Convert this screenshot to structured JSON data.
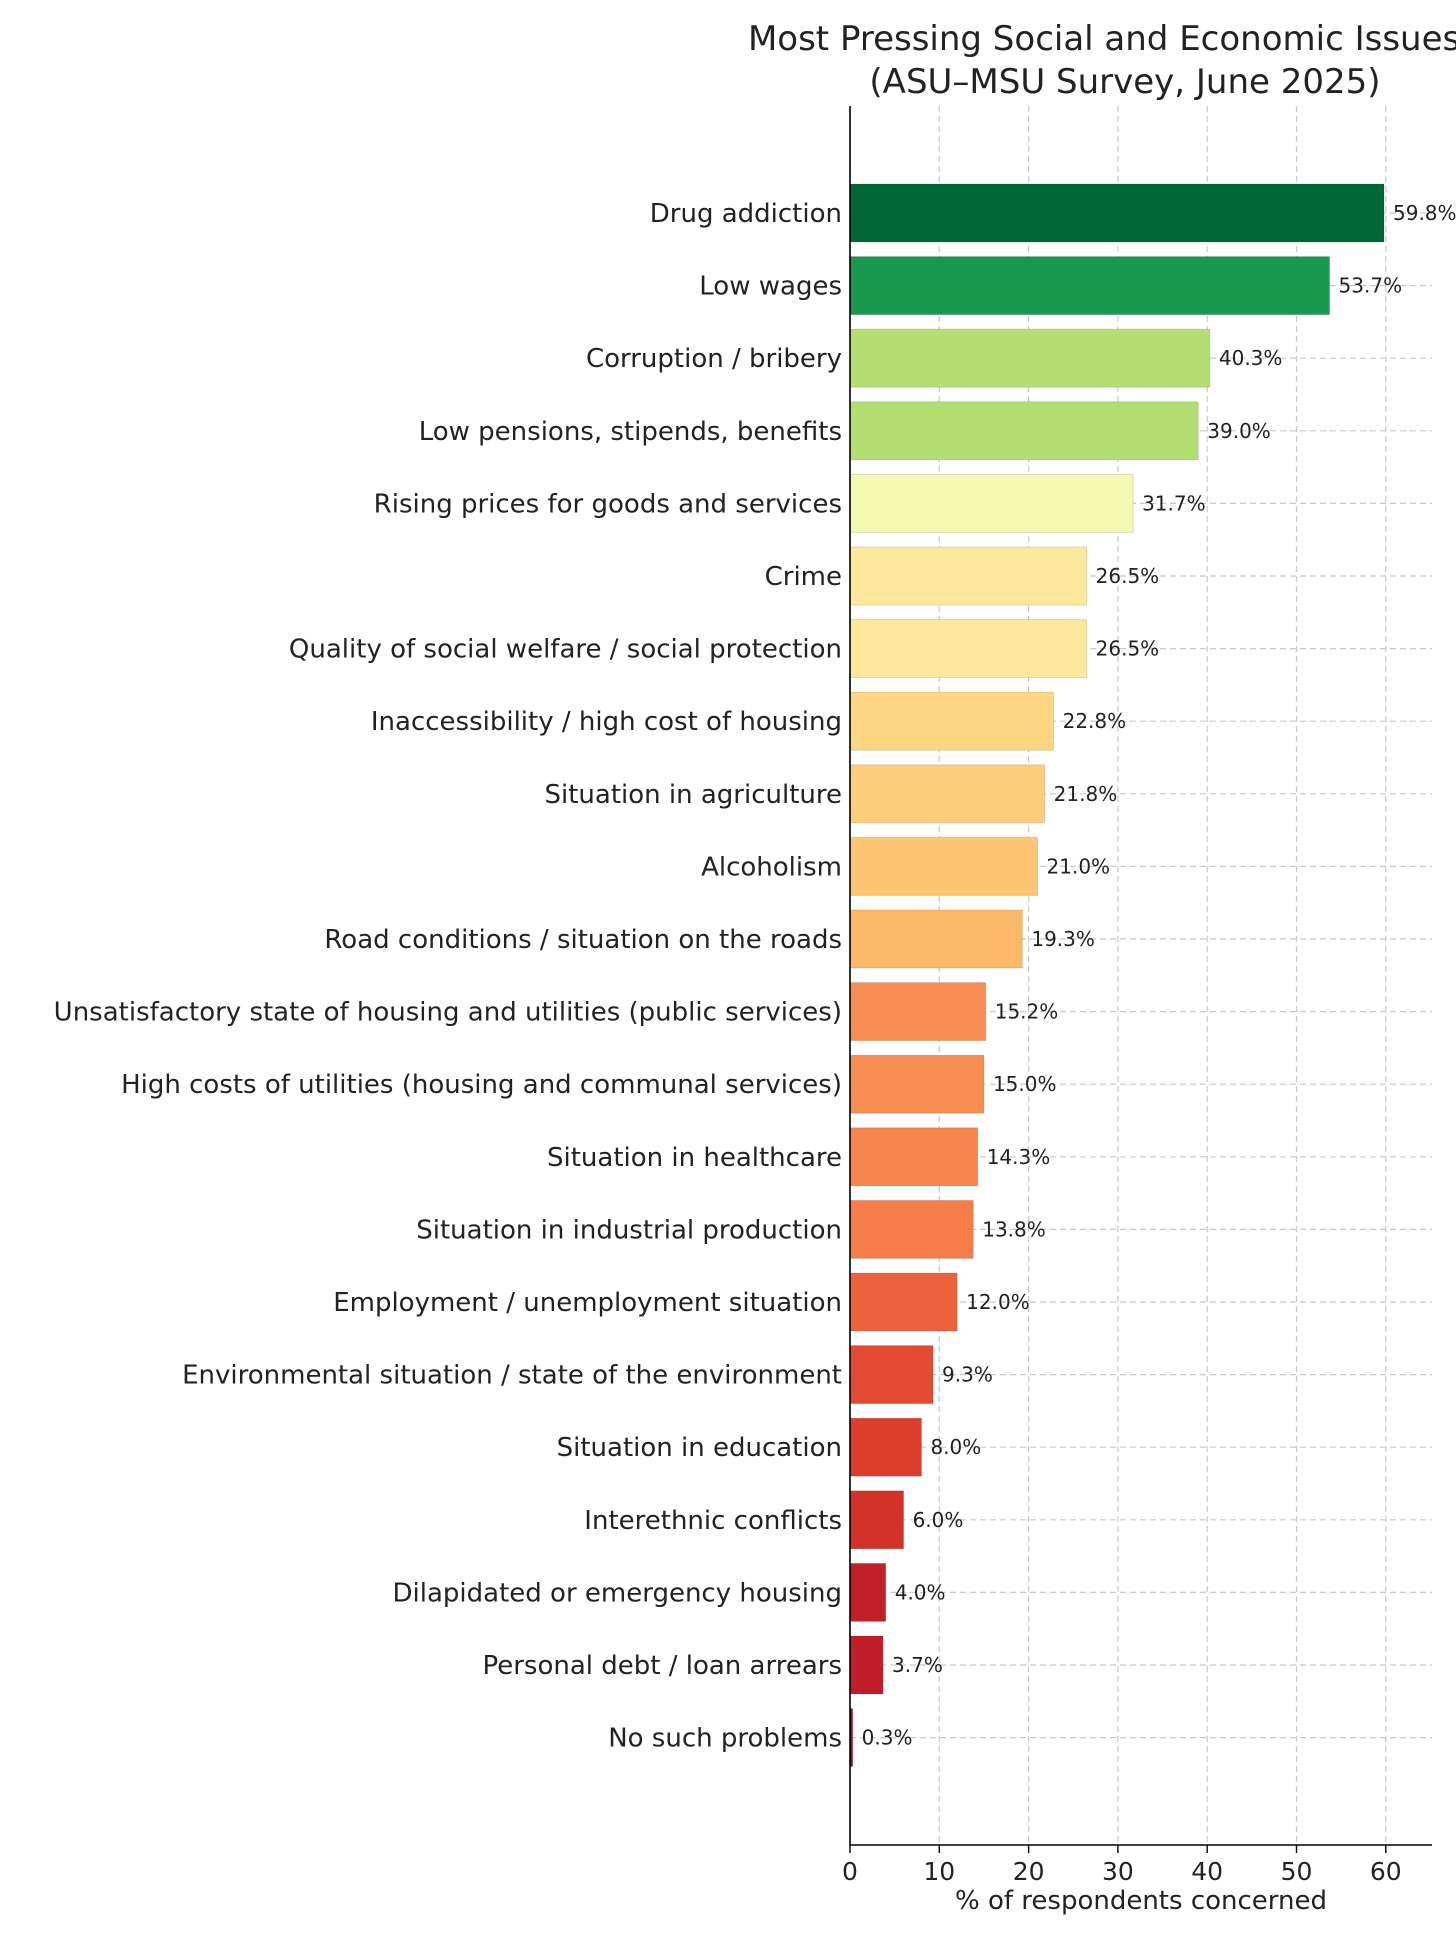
{
  "chart_data": {
    "type": "bar",
    "orientation": "horizontal",
    "title": "Most Pressing Social and Economic Issues in",
    "subtitle": "(ASU–MSU Survey, June 2025)",
    "xlabel": "% of respondents concerned",
    "ylabel": "",
    "xlim": [
      0,
      65
    ],
    "xticks": [
      "0",
      "10",
      "20",
      "30",
      "40",
      "50",
      "60"
    ],
    "grid": true,
    "categories": [
      "Drug addiction",
      "Low wages",
      "Corruption / bribery",
      "Low pensions, stipends, benefits",
      "Rising prices for goods and services",
      "Crime",
      "Quality of social welfare / social protection",
      "Inaccessibility / high cost of housing",
      "Situation in agriculture",
      "Alcoholism",
      "Road conditions / situation on the roads",
      "Unsatisfactory state of housing and utilities (public services)",
      "High costs of utilities (housing and communal services)",
      "Situation in healthcare",
      "Situation in industrial production",
      "Employment / unemployment situation",
      "Environmental situation / state of the environment",
      "Situation in education",
      "Interethnic conflicts",
      "Dilapidated or emergency housing",
      "Personal debt / loan arrears",
      "No such problems"
    ],
    "values": [
      59.8,
      53.7,
      40.3,
      39.0,
      31.7,
      26.5,
      26.5,
      22.8,
      21.8,
      21.0,
      19.3,
      15.2,
      15.0,
      14.3,
      13.8,
      12.0,
      9.3,
      8.0,
      6.0,
      4.0,
      3.7,
      0.3
    ],
    "value_labels": [
      "59.8%",
      "53.7%",
      "40.3%",
      "39.0%",
      "31.7%",
      "26.5%",
      "26.5%",
      "22.8%",
      "21.8%",
      "21.0%",
      "19.3%",
      "15.2%",
      "15.0%",
      "14.3%",
      "13.8%",
      "12.0%",
      "9.3%",
      "8.0%",
      "6.0%",
      "4.0%",
      "3.7%",
      "0.3%"
    ],
    "colors": [
      "#006837",
      "#1a9850",
      "#b3df72",
      "#b3df72",
      "#f3f9b0",
      "#fee89c",
      "#fee89c",
      "#fdd683",
      "#fdce7c",
      "#fdc574",
      "#fdb96a",
      "#f88e52",
      "#f88e52",
      "#f5844d",
      "#f47d4a",
      "#ee613d",
      "#e34a33",
      "#dc3d2d",
      "#d3322b",
      "#c0202a",
      "#bf1e2a",
      "#a50026"
    ]
  }
}
